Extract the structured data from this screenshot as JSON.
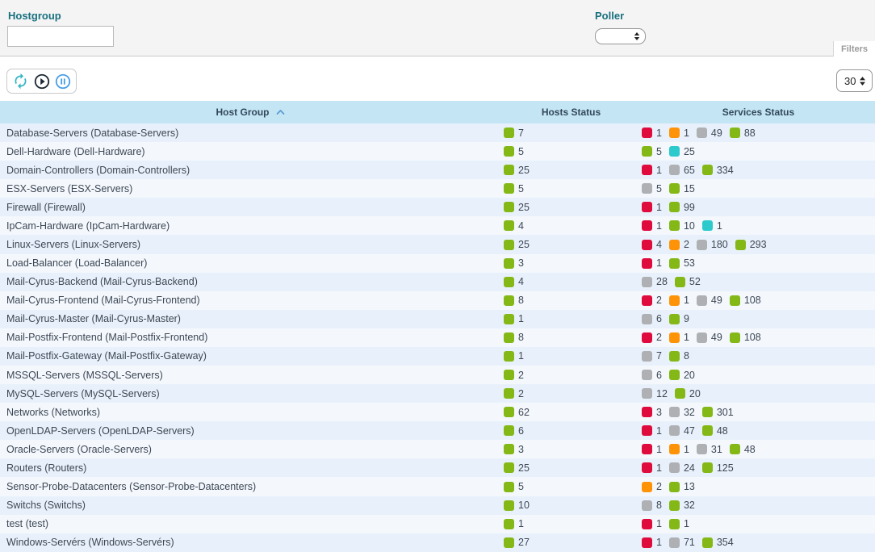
{
  "filters": {
    "hostgroup_label": "Hostgroup",
    "hostgroup_value": "",
    "poller_label": "Poller",
    "poller_value": "",
    "filters_tab_label": "Filters"
  },
  "toolbar": {
    "icons": [
      "refresh-icon",
      "play-icon",
      "pause-icon"
    ],
    "icon_colors": {
      "refresh": "#31b6c5",
      "play": "#1d2936",
      "pause": "#4a9fe8"
    },
    "page_size": "30"
  },
  "table": {
    "columns": [
      "Host Group",
      "Hosts Status",
      "Services Status"
    ],
    "sort_column": "Host Group",
    "sort_direction": "asc",
    "rows": [
      {
        "name": "Database-Servers (Database-Servers)",
        "hosts": [
          {
            "status": "up",
            "count": 7
          }
        ],
        "services": [
          {
            "status": "critical",
            "count": 1
          },
          {
            "status": "warning",
            "count": 1
          },
          {
            "status": "unknown",
            "count": 49
          },
          {
            "status": "ok",
            "count": 88
          }
        ]
      },
      {
        "name": "Dell-Hardware (Dell-Hardware)",
        "hosts": [
          {
            "status": "up",
            "count": 5
          }
        ],
        "services": [
          {
            "status": "ok",
            "count": 5
          },
          {
            "status": "pending",
            "count": 25
          }
        ]
      },
      {
        "name": "Domain-Controllers (Domain-Controllers)",
        "hosts": [
          {
            "status": "up",
            "count": 25
          }
        ],
        "services": [
          {
            "status": "critical",
            "count": 1
          },
          {
            "status": "unknown",
            "count": 65
          },
          {
            "status": "ok",
            "count": 334
          }
        ]
      },
      {
        "name": "ESX-Servers (ESX-Servers)",
        "hosts": [
          {
            "status": "up",
            "count": 5
          }
        ],
        "services": [
          {
            "status": "unknown",
            "count": 5
          },
          {
            "status": "ok",
            "count": 15
          }
        ]
      },
      {
        "name": "Firewall (Firewall)",
        "hosts": [
          {
            "status": "up",
            "count": 25
          }
        ],
        "services": [
          {
            "status": "critical",
            "count": 1
          },
          {
            "status": "ok",
            "count": 99
          }
        ]
      },
      {
        "name": "IpCam-Hardware (IpCam-Hardware)",
        "hosts": [
          {
            "status": "up",
            "count": 4
          }
        ],
        "services": [
          {
            "status": "critical",
            "count": 1
          },
          {
            "status": "ok",
            "count": 10
          },
          {
            "status": "pending",
            "count": 1
          }
        ]
      },
      {
        "name": "Linux-Servers (Linux-Servers)",
        "hosts": [
          {
            "status": "up",
            "count": 25
          }
        ],
        "services": [
          {
            "status": "critical",
            "count": 4
          },
          {
            "status": "warning",
            "count": 2
          },
          {
            "status": "unknown",
            "count": 180
          },
          {
            "status": "ok",
            "count": 293
          }
        ]
      },
      {
        "name": "Load-Balancer (Load-Balancer)",
        "hosts": [
          {
            "status": "up",
            "count": 3
          }
        ],
        "services": [
          {
            "status": "critical",
            "count": 1
          },
          {
            "status": "ok",
            "count": 53
          }
        ]
      },
      {
        "name": "Mail-Cyrus-Backend (Mail-Cyrus-Backend)",
        "hosts": [
          {
            "status": "up",
            "count": 4
          }
        ],
        "services": [
          {
            "status": "unknown",
            "count": 28
          },
          {
            "status": "ok",
            "count": 52
          }
        ]
      },
      {
        "name": "Mail-Cyrus-Frontend (Mail-Cyrus-Frontend)",
        "hosts": [
          {
            "status": "up",
            "count": 8
          }
        ],
        "services": [
          {
            "status": "critical",
            "count": 2
          },
          {
            "status": "warning",
            "count": 1
          },
          {
            "status": "unknown",
            "count": 49
          },
          {
            "status": "ok",
            "count": 108
          }
        ]
      },
      {
        "name": "Mail-Cyrus-Master (Mail-Cyrus-Master)",
        "hosts": [
          {
            "status": "up",
            "count": 1
          }
        ],
        "services": [
          {
            "status": "unknown",
            "count": 6
          },
          {
            "status": "ok",
            "count": 9
          }
        ]
      },
      {
        "name": "Mail-Postfix-Frontend (Mail-Postfix-Frontend)",
        "hosts": [
          {
            "status": "up",
            "count": 8
          }
        ],
        "services": [
          {
            "status": "critical",
            "count": 2
          },
          {
            "status": "warning",
            "count": 1
          },
          {
            "status": "unknown",
            "count": 49
          },
          {
            "status": "ok",
            "count": 108
          }
        ]
      },
      {
        "name": "Mail-Postfix-Gateway (Mail-Postfix-Gateway)",
        "hosts": [
          {
            "status": "up",
            "count": 1
          }
        ],
        "services": [
          {
            "status": "unknown",
            "count": 7
          },
          {
            "status": "ok",
            "count": 8
          }
        ]
      },
      {
        "name": "MSSQL-Servers (MSSQL-Servers)",
        "hosts": [
          {
            "status": "up",
            "count": 2
          }
        ],
        "services": [
          {
            "status": "unknown",
            "count": 6
          },
          {
            "status": "ok",
            "count": 20
          }
        ]
      },
      {
        "name": "MySQL-Servers (MySQL-Servers)",
        "hosts": [
          {
            "status": "up",
            "count": 2
          }
        ],
        "services": [
          {
            "status": "unknown",
            "count": 12
          },
          {
            "status": "ok",
            "count": 20
          }
        ]
      },
      {
        "name": "Networks (Networks)",
        "hosts": [
          {
            "status": "up",
            "count": 62
          }
        ],
        "services": [
          {
            "status": "critical",
            "count": 3
          },
          {
            "status": "unknown",
            "count": 32
          },
          {
            "status": "ok",
            "count": 301
          }
        ]
      },
      {
        "name": "OpenLDAP-Servers (OpenLDAP-Servers)",
        "hosts": [
          {
            "status": "up",
            "count": 6
          }
        ],
        "services": [
          {
            "status": "critical",
            "count": 1
          },
          {
            "status": "unknown",
            "count": 47
          },
          {
            "status": "ok",
            "count": 48
          }
        ]
      },
      {
        "name": "Oracle-Servers (Oracle-Servers)",
        "hosts": [
          {
            "status": "up",
            "count": 3
          }
        ],
        "services": [
          {
            "status": "critical",
            "count": 1
          },
          {
            "status": "warning",
            "count": 1
          },
          {
            "status": "unknown",
            "count": 31
          },
          {
            "status": "ok",
            "count": 48
          }
        ]
      },
      {
        "name": "Routers (Routers)",
        "hosts": [
          {
            "status": "up",
            "count": 25
          }
        ],
        "services": [
          {
            "status": "critical",
            "count": 1
          },
          {
            "status": "unknown",
            "count": 24
          },
          {
            "status": "ok",
            "count": 125
          }
        ]
      },
      {
        "name": "Sensor-Probe-Datacenters (Sensor-Probe-Datacenters)",
        "hosts": [
          {
            "status": "up",
            "count": 5
          }
        ],
        "services": [
          {
            "status": "warning",
            "count": 2
          },
          {
            "status": "ok",
            "count": 13
          }
        ]
      },
      {
        "name": "Switchs (Switchs)",
        "hosts": [
          {
            "status": "up",
            "count": 10
          }
        ],
        "services": [
          {
            "status": "unknown",
            "count": 8
          },
          {
            "status": "ok",
            "count": 32
          }
        ]
      },
      {
        "name": "test (test)",
        "hosts": [
          {
            "status": "up",
            "count": 1
          }
        ],
        "services": [
          {
            "status": "critical",
            "count": 1
          },
          {
            "status": "ok",
            "count": 1
          }
        ]
      },
      {
        "name": "Windows-Servérs (Windows-Servérs)",
        "hosts": [
          {
            "status": "up",
            "count": 27
          }
        ],
        "services": [
          {
            "status": "critical",
            "count": 1
          },
          {
            "status": "unknown",
            "count": 71
          },
          {
            "status": "ok",
            "count": 354
          }
        ]
      }
    ]
  },
  "status_colors": {
    "up": "#84b816",
    "ok": "#84b816",
    "critical": "#e00b3d",
    "warning": "#ff9307",
    "unknown": "#aeb0b3",
    "pending": "#2cc9cd"
  }
}
